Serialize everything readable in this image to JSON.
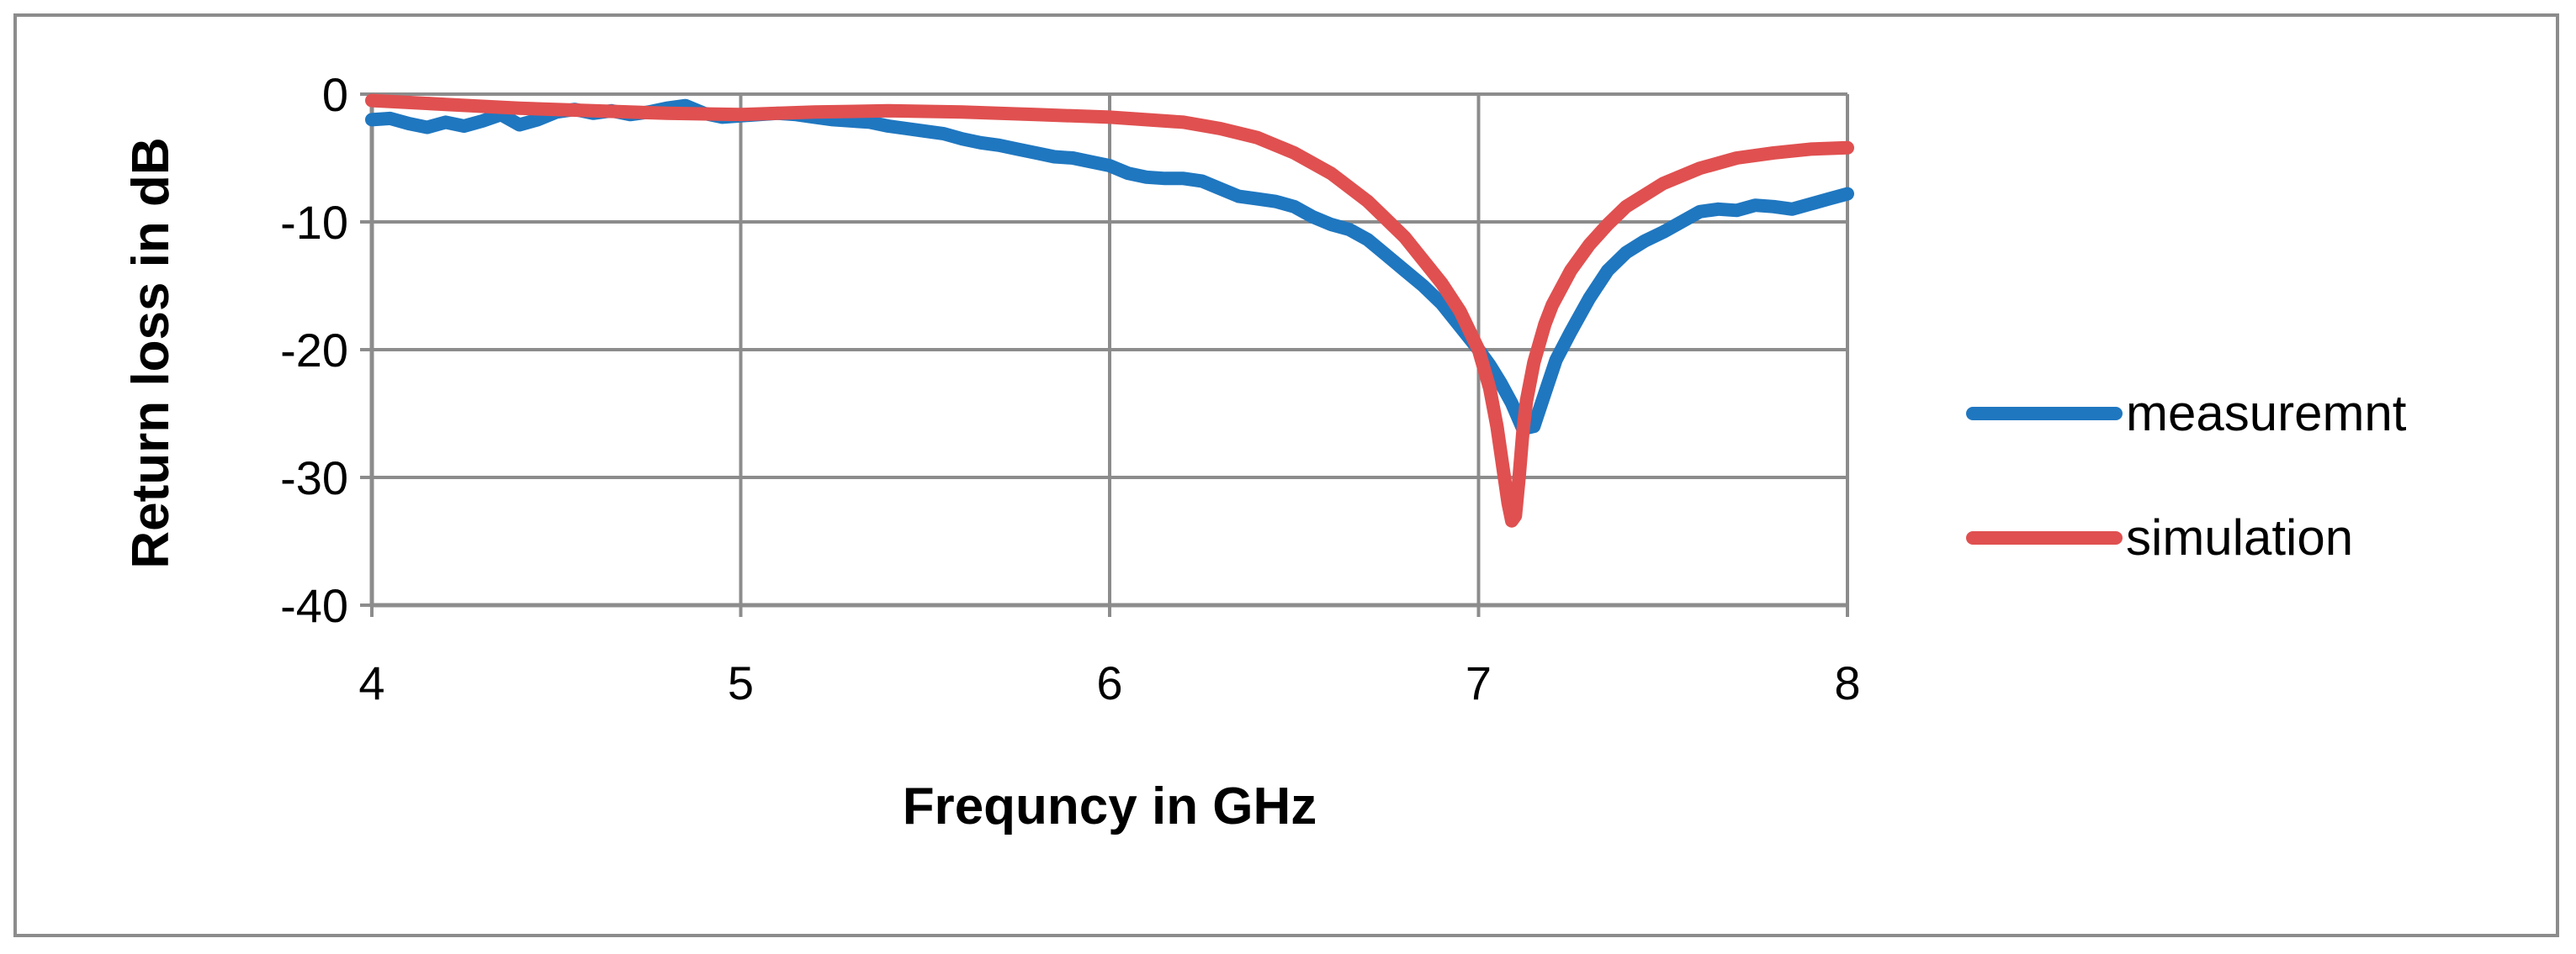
{
  "chart_data": {
    "type": "line",
    "title": "",
    "xlabel": "Frequncy in GHz",
    "ylabel": "Return loss in dB",
    "xlim": [
      4,
      8
    ],
    "ylim": [
      -40,
      0
    ],
    "xticks": [
      4,
      5,
      6,
      7,
      8
    ],
    "yticks": [
      0,
      -10,
      -20,
      -30,
      -40
    ],
    "grid": true,
    "legend_position": "right",
    "series": [
      {
        "name": "measuremnt",
        "color": "#1f77c0",
        "x": [
          4.0,
          4.05,
          4.1,
          4.15,
          4.2,
          4.25,
          4.3,
          4.35,
          4.4,
          4.45,
          4.5,
          4.55,
          4.6,
          4.65,
          4.7,
          4.75,
          4.8,
          4.85,
          4.9,
          4.95,
          5.0,
          5.05,
          5.1,
          5.15,
          5.2,
          5.25,
          5.3,
          5.35,
          5.4,
          5.45,
          5.5,
          5.55,
          5.6,
          5.65,
          5.7,
          5.75,
          5.8,
          5.85,
          5.9,
          5.95,
          6.0,
          6.05,
          6.1,
          6.15,
          6.2,
          6.25,
          6.3,
          6.35,
          6.4,
          6.45,
          6.5,
          6.55,
          6.6,
          6.65,
          6.7,
          6.75,
          6.8,
          6.85,
          6.9,
          6.95,
          7.0,
          7.03,
          7.06,
          7.09,
          7.12,
          7.15,
          7.18,
          7.21,
          7.25,
          7.3,
          7.35,
          7.4,
          7.45,
          7.5,
          7.55,
          7.6,
          7.65,
          7.7,
          7.75,
          7.8,
          7.85,
          7.9,
          7.95,
          8.0
        ],
        "y": [
          -2.0,
          -1.9,
          -2.3,
          -2.6,
          -2.2,
          -2.5,
          -2.1,
          -1.6,
          -2.4,
          -2.0,
          -1.4,
          -1.2,
          -1.5,
          -1.3,
          -1.6,
          -1.4,
          -1.1,
          -0.9,
          -1.5,
          -1.8,
          -1.7,
          -1.6,
          -1.5,
          -1.6,
          -1.8,
          -2.0,
          -2.1,
          -2.2,
          -2.5,
          -2.7,
          -2.9,
          -3.1,
          -3.5,
          -3.8,
          -4.0,
          -4.3,
          -4.6,
          -4.9,
          -5.0,
          -5.3,
          -5.6,
          -6.2,
          -6.5,
          -6.6,
          -6.6,
          -6.8,
          -7.4,
          -8.0,
          -8.2,
          -8.4,
          -8.8,
          -9.6,
          -10.2,
          -10.6,
          -11.4,
          -12.6,
          -13.8,
          -15.0,
          -16.4,
          -18.2,
          -20.0,
          -21.2,
          -22.6,
          -24.2,
          -26.2,
          -26.0,
          -23.4,
          -20.8,
          -18.6,
          -16.0,
          -13.8,
          -12.4,
          -11.5,
          -10.8,
          -10.0,
          -9.2,
          -9.0,
          -9.1,
          -8.7,
          -8.8,
          -9.0,
          -8.6,
          -8.2,
          -7.8
        ]
      },
      {
        "name": "simulation",
        "color": "#e05050",
        "x": [
          4.0,
          4.2,
          4.4,
          4.6,
          4.8,
          5.0,
          5.2,
          5.4,
          5.6,
          5.8,
          6.0,
          6.2,
          6.3,
          6.4,
          6.5,
          6.6,
          6.7,
          6.8,
          6.9,
          6.95,
          7.0,
          7.03,
          7.05,
          7.07,
          7.08,
          7.09,
          7.1,
          7.11,
          7.12,
          7.13,
          7.15,
          7.18,
          7.2,
          7.25,
          7.3,
          7.35,
          7.4,
          7.5,
          7.6,
          7.7,
          7.8,
          7.9,
          8.0
        ],
        "y": [
          -0.5,
          -0.8,
          -1.1,
          -1.3,
          -1.5,
          -1.6,
          -1.4,
          -1.3,
          -1.4,
          -1.6,
          -1.8,
          -2.2,
          -2.7,
          -3.4,
          -4.6,
          -6.2,
          -8.4,
          -11.2,
          -14.8,
          -17.0,
          -20.0,
          -23.0,
          -26.0,
          -30.0,
          -32.0,
          -33.4,
          -33.0,
          -30.0,
          -26.5,
          -24.0,
          -21.0,
          -18.0,
          -16.5,
          -13.8,
          -11.8,
          -10.2,
          -8.8,
          -7.0,
          -5.8,
          -5.0,
          -4.6,
          -4.3,
          -4.2
        ]
      }
    ]
  }
}
